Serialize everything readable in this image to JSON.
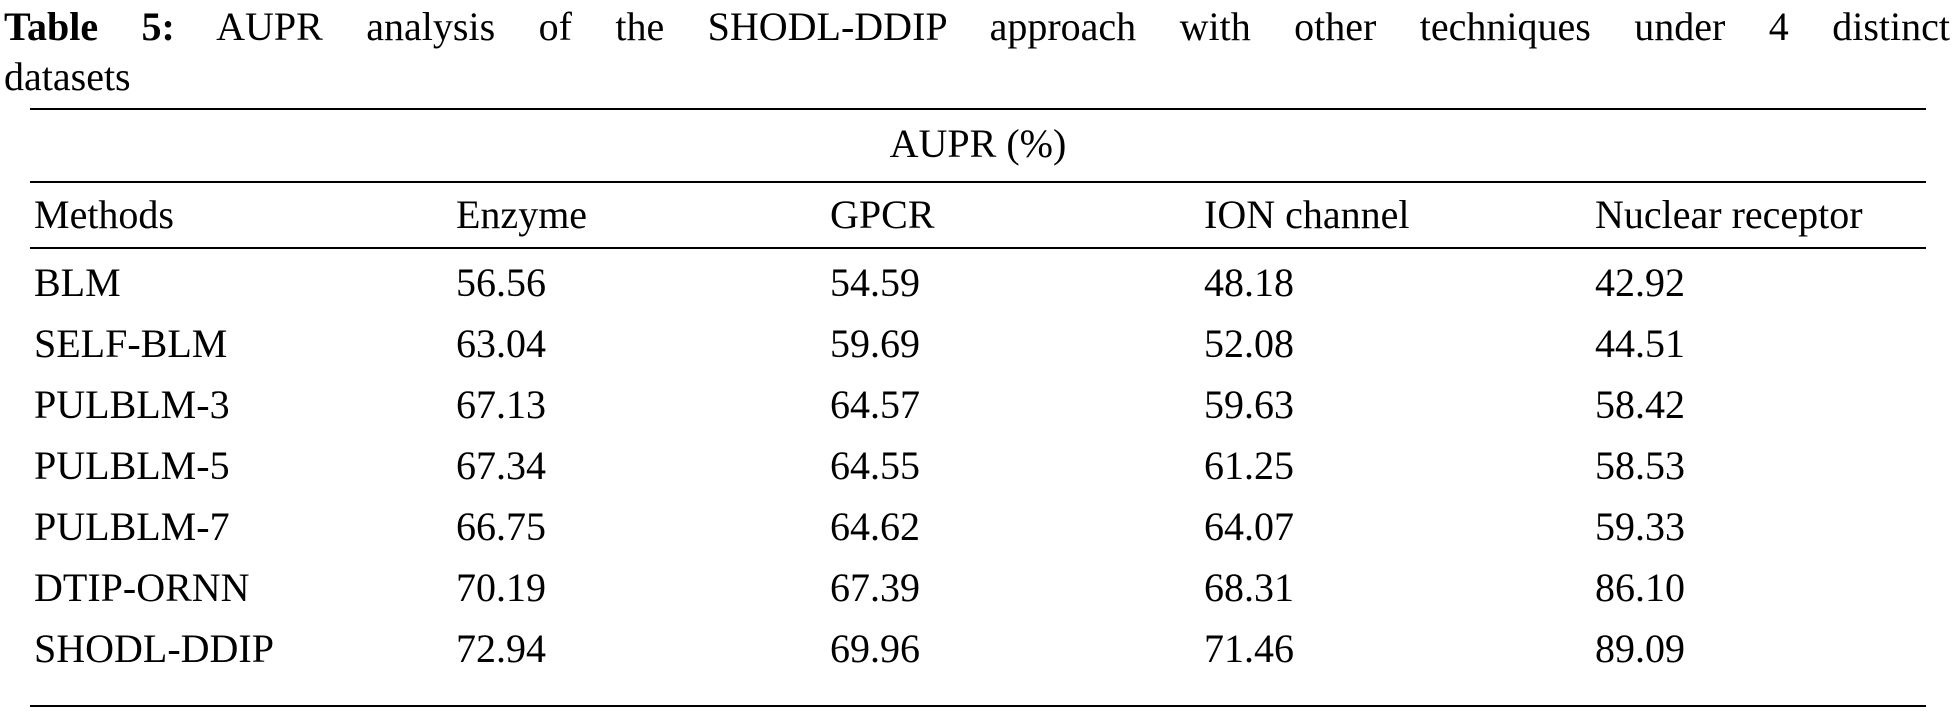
{
  "caption": {
    "label": "Table 5:",
    "text_line1": "AUPR analysis of the SHODL-DDIP approach with other techniques under 4 distinct",
    "text_line2": "datasets"
  },
  "table": {
    "group_header": "AUPR (%)",
    "columns": [
      "Methods",
      "Enzyme",
      "GPCR",
      "ION channel",
      "Nuclear receptor"
    ],
    "rows": [
      [
        "BLM",
        "56.56",
        "54.59",
        "48.18",
        "42.92"
      ],
      [
        "SELF-BLM",
        "63.04",
        "59.69",
        "52.08",
        "44.51"
      ],
      [
        "PULBLM-3",
        "67.13",
        "64.57",
        "59.63",
        "58.42"
      ],
      [
        "PULBLM-5",
        "67.34",
        "64.55",
        "61.25",
        "58.53"
      ],
      [
        "PULBLM-7",
        "66.75",
        "64.62",
        "64.07",
        "59.33"
      ],
      [
        "DTIP-ORNN",
        "70.19",
        "67.39",
        "68.31",
        "86.10"
      ],
      [
        "SHODL-DDIP",
        "72.94",
        "69.96",
        "71.46",
        "89.09"
      ]
    ]
  }
}
